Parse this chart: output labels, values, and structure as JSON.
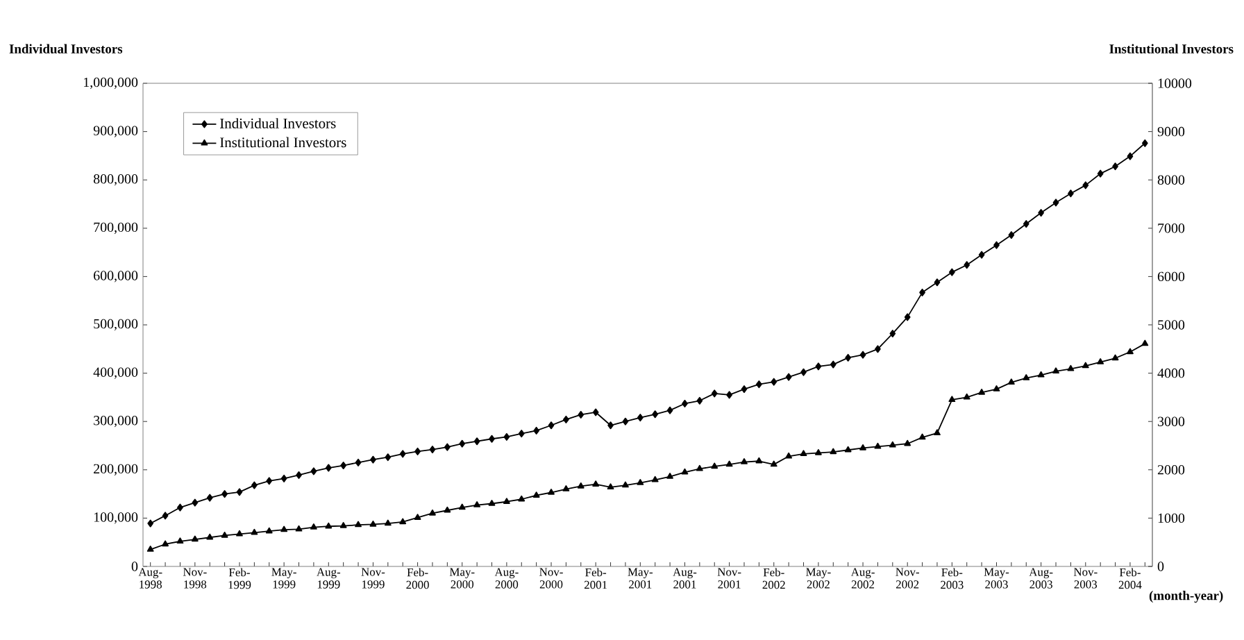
{
  "chart_data": {
    "type": "line",
    "ylabel": "Individual Investors",
    "y2label": "Institutional Investors",
    "xlabel": "(month-year)",
    "categories": [
      "Aug- 1998",
      null,
      null,
      "Nov- 1998",
      null,
      null,
      "Feb- 1999",
      null,
      null,
      "May- 1999",
      null,
      null,
      "Aug- 1999",
      null,
      null,
      "Nov- 1999",
      null,
      null,
      "Feb- 2000",
      null,
      null,
      "May- 2000",
      null,
      null,
      "Aug- 2000",
      null,
      null,
      "Nov- 2000",
      null,
      null,
      "Feb- 2001",
      null,
      null,
      "May- 2001",
      null,
      null,
      "Aug- 2001",
      null,
      null,
      "Nov- 2001",
      null,
      null,
      "Feb- 2002",
      null,
      null,
      "May- 2002",
      null,
      null,
      "Aug- 2002",
      null,
      null,
      "Nov- 2002",
      null,
      null,
      "Feb- 2003",
      null,
      null,
      "May- 2003",
      null,
      null,
      "Aug- 2003",
      null,
      null,
      "Nov- 2003",
      null,
      null,
      "Feb- 2004",
      null
    ],
    "series": [
      {
        "name": "Individual Investors",
        "color": "#000000",
        "marker": "diamond",
        "values": [
          89000,
          105000,
          122000,
          132000,
          142000,
          150000,
          154000,
          168000,
          177000,
          182000,
          189000,
          197000,
          204000,
          209000,
          215000,
          221000,
          226000,
          233000,
          238000,
          242000,
          247000,
          254000,
          259000,
          264000,
          268000,
          275000,
          281000,
          292000,
          304000,
          314000,
          319000,
          292000,
          300000,
          308000,
          315000,
          323000,
          337000,
          343000,
          358000,
          355000,
          367000,
          377000,
          382000,
          392000,
          402000,
          414000,
          418000,
          432000,
          438000,
          450000,
          482000,
          516000,
          567000,
          588000,
          609000,
          624000,
          645000,
          665000,
          686000,
          709000,
          732000,
          753000,
          772000,
          789000,
          813000,
          828000,
          849000,
          876000
        ]
      },
      {
        "name": "Institutional Investors",
        "color": "#000000",
        "marker": "triangle",
        "axis": "y2",
        "values": [
          350,
          460,
          520,
          560,
          600,
          640,
          670,
          700,
          730,
          760,
          770,
          810,
          830,
          840,
          860,
          870,
          890,
          920,
          1010,
          1100,
          1160,
          1220,
          1270,
          1300,
          1340,
          1390,
          1470,
          1530,
          1600,
          1660,
          1700,
          1640,
          1680,
          1730,
          1790,
          1860,
          1950,
          2020,
          2070,
          2110,
          2160,
          2180,
          2110,
          2280,
          2330,
          2350,
          2370,
          2410,
          2450,
          2480,
          2510,
          2540,
          2670,
          2760,
          3450,
          3500,
          3600,
          3670,
          3810,
          3900,
          3960,
          4040,
          4090,
          4150,
          4230,
          4310,
          4440,
          4610
        ]
      }
    ],
    "ylim": [
      0,
      1000000
    ],
    "yticks": [
      0,
      {
        "value": 100000,
        "label": "100,000"
      },
      {
        "value": 200000,
        "label": "200,000"
      },
      {
        "value": 300000,
        "label": "300,000"
      },
      {
        "value": 400000,
        "label": "400,000"
      },
      {
        "value": 500000,
        "label": "500,000"
      },
      {
        "value": 600000,
        "label": "600,000"
      },
      {
        "value": 700000,
        "label": "700,000"
      },
      {
        "value": 800000,
        "label": "800,000"
      },
      {
        "value": 900000,
        "label": "900,000"
      },
      {
        "value": 1000000,
        "label": "1,000,000"
      }
    ],
    "y2lim": [
      0,
      10000
    ],
    "y2ticks": [
      0,
      1000,
      2000,
      3000,
      4000,
      5000,
      6000,
      7000,
      8000,
      9000,
      10000
    ],
    "legend": "top left",
    "grid": false,
    "line_style": "solid"
  }
}
